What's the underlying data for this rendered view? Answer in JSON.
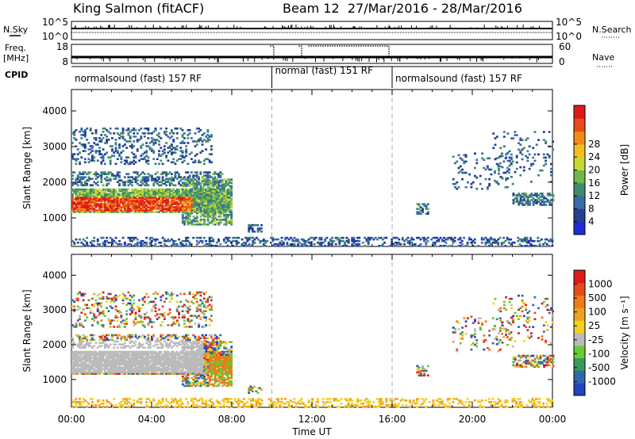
{
  "header": {
    "station": "King Salmon (fitACF)",
    "beam_info": "Beam 12  27/Mar/2016 - 28/Mar/2016"
  },
  "side_labels": {
    "nsky": "N.Sky",
    "freq": "Freq.",
    "freq_unit": "[MHz]",
    "cpid": "CPID",
    "nsearch": "N.Search",
    "nave": "Nave"
  },
  "cpid_segments": [
    {
      "label": "normalsound (fast) 157 RF",
      "start": 0,
      "end": 10
    },
    {
      "label": "normal (fast) 151 RF",
      "start": 10,
      "end": 16
    },
    {
      "label": "normalsound (fast) 157 RF",
      "start": 16,
      "end": 24
    }
  ],
  "chart_data": [
    {
      "type": "line",
      "name": "noise-panel",
      "left_ticks": [
        "10^5",
        "10^0"
      ],
      "right_ticks": [
        "10^5",
        "10^0"
      ],
      "series": [
        {
          "name": "N.Sky"
        },
        {
          "name": "N.Search"
        }
      ]
    },
    {
      "type": "line",
      "name": "freq-panel",
      "left_ticks": [
        "18",
        "8"
      ],
      "right_ticks": [
        "60",
        "0"
      ],
      "series": [
        {
          "name": "Freq."
        },
        {
          "name": "Nave"
        }
      ]
    },
    {
      "type": "heatmap",
      "name": "power",
      "ylabel": "Slant Range [km]",
      "xlabel": "Time UT",
      "ylim": [
        200,
        4600
      ],
      "xlim": [
        0,
        24
      ],
      "yticks": [
        "1000",
        "2000",
        "3000",
        "4000"
      ],
      "xticks": [
        "00:00",
        "04:00",
        "08:00",
        "12:00",
        "16:00",
        "20:00",
        "00:00"
      ],
      "dashed_vlines": [
        10,
        16
      ],
      "colorbar": {
        "label": "Power [dB]",
        "ticks": [
          "4",
          "8",
          "12",
          "16",
          "20",
          "24",
          "28"
        ],
        "colors": [
          "#1e2bd6",
          "#23408f",
          "#3a6aa8",
          "#3f8a6a",
          "#6fb84a",
          "#c8d830",
          "#f0c020",
          "#f28a1a",
          "#e84a18",
          "#dd1a1a"
        ]
      }
    },
    {
      "type": "heatmap",
      "name": "velocity",
      "ylabel": "Slant Range [km]",
      "xlabel": "Time UT",
      "ylim": [
        200,
        4600
      ],
      "xlim": [
        0,
        24
      ],
      "yticks": [
        "1000",
        "2000",
        "3000",
        "4000"
      ],
      "xticks": [
        "00:00",
        "04:00",
        "08:00",
        "12:00",
        "16:00",
        "20:00",
        "00:00"
      ],
      "dashed_vlines": [
        10,
        16
      ],
      "colorbar": {
        "label": "Velocity [m s⁻¹]",
        "ticks": [
          "1000",
          "500",
          "100",
          "25",
          "-25",
          "-100",
          "-500",
          "-1000"
        ],
        "colors": [
          "#2244bb",
          "#3366aa",
          "#3a9a5a",
          "#66cc33",
          "#bbbbbb",
          "#f2d020",
          "#f0a020",
          "#ee7a18",
          "#e84a18",
          "#dd1a1a"
        ]
      }
    }
  ]
}
